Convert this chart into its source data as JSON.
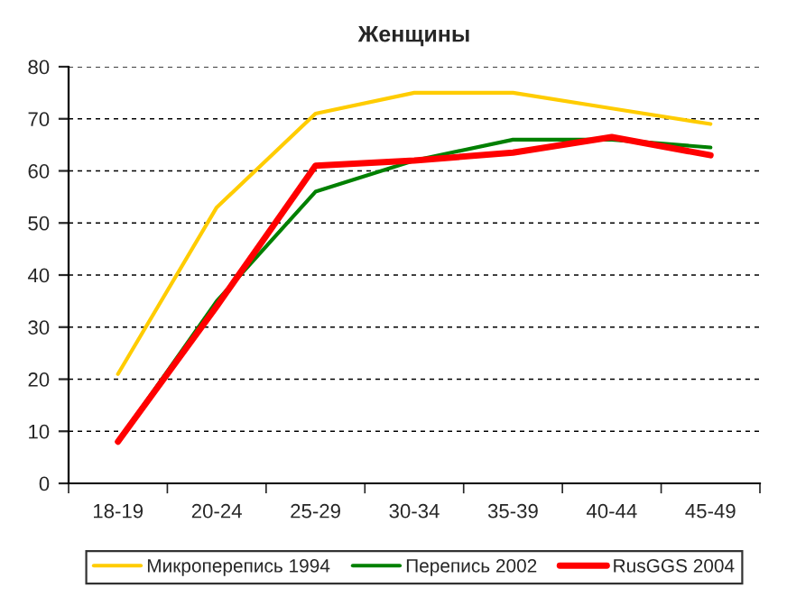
{
  "chart_data": {
    "type": "line",
    "title": "Женщины",
    "categories": [
      "18-19",
      "20-24",
      "25-29",
      "30-34",
      "35-39",
      "40-44",
      "45-49"
    ],
    "series": [
      {
        "name": "Микроперепись 1994",
        "color": "#ffcc00",
        "values": [
          21,
          53,
          71,
          75,
          75,
          72,
          69
        ]
      },
      {
        "name": "Перепись 2002",
        "color": "#008000",
        "values": [
          8,
          35,
          56,
          62,
          66,
          66,
          64.5
        ]
      },
      {
        "name": "RusGGS 2004",
        "color": "#ff0000",
        "values": [
          8,
          34,
          61,
          62,
          63.5,
          66.5,
          63
        ]
      }
    ],
    "ylim": [
      0,
      80
    ],
    "yticks": [
      0,
      10,
      20,
      30,
      40,
      50,
      60,
      70,
      80
    ],
    "grid": "y",
    "legend": "bottom",
    "marker": "none",
    "line_style": "solid"
  }
}
